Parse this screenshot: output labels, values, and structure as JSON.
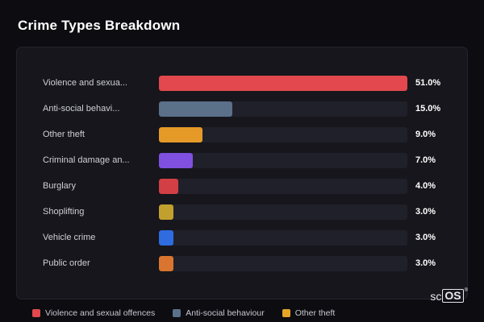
{
  "title": "Crime Types Breakdown",
  "chart_data": {
    "type": "bar",
    "orientation": "horizontal",
    "title": "Crime Types Breakdown",
    "max_value": 51,
    "categories": [
      "Violence and sexua...",
      "Anti-social behavi...",
      "Other theft",
      "Criminal damage an...",
      "Burglary",
      "Shoplifting",
      "Vehicle crime",
      "Public order"
    ],
    "values": [
      51,
      15,
      9,
      7,
      4,
      3,
      3,
      3
    ],
    "value_labels": [
      "51.0%",
      "15.0%",
      "9.0%",
      "7.0%",
      "4.0%",
      "3.0%",
      "3.0%",
      "3.0%"
    ],
    "bar_colors": [
      "#e2484d",
      "#5b7089",
      "#e59a28",
      "#8050e0",
      "#d23f44",
      "#c1a02e",
      "#2e6ce0",
      "#d9752e"
    ],
    "track_color": "#20202a",
    "legend": [
      {
        "label": "Violence and sexual offences",
        "color": "#e2484d"
      },
      {
        "label": "Anti-social behaviour",
        "color": "#5b7089"
      },
      {
        "label": "Other theft",
        "color": "#e5a428"
      }
    ]
  },
  "logo": {
    "prefix": "sc",
    "boxed": "OS",
    "registered": "®"
  }
}
